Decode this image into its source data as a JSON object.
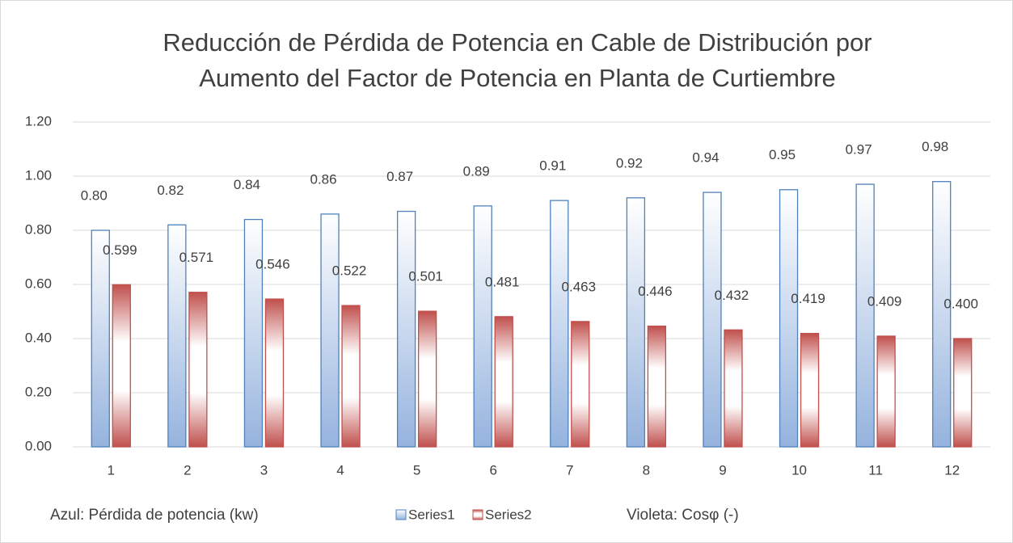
{
  "chart_data": {
    "type": "bar",
    "title": [
      "Reducción de Pérdida de Potencia en Cable de Distribución por",
      "Aumento del Factor de Potencia en Planta de Curtiembre"
    ],
    "categories": [
      "1",
      "2",
      "3",
      "4",
      "5",
      "6",
      "7",
      "8",
      "9",
      "10",
      "11",
      "12"
    ],
    "series": [
      {
        "name": "Series1",
        "color": "#4f81bd",
        "values": [
          0.8,
          0.82,
          0.84,
          0.86,
          0.87,
          0.89,
          0.91,
          0.92,
          0.94,
          0.95,
          0.97,
          0.98
        ],
        "value_labels": [
          "0.80",
          "0.82",
          "0.84",
          "0.86",
          "0.87",
          "0.89",
          "0.91",
          "0.92",
          "0.94",
          "0.95",
          "0.97",
          "0.98"
        ]
      },
      {
        "name": "Series2",
        "color": "#c0504d",
        "values": [
          0.599,
          0.571,
          0.546,
          0.522,
          0.501,
          0.481,
          0.463,
          0.446,
          0.432,
          0.419,
          0.409,
          0.4
        ],
        "value_labels": [
          "0.599",
          "0.571",
          "0.546",
          "0.522",
          "0.501",
          "0.481",
          "0.463",
          "0.446",
          "0.432",
          "0.419",
          "0.409",
          "0.400"
        ]
      }
    ],
    "ylim": [
      0,
      1.2
    ],
    "yticks": [
      {
        "value": 0,
        "label": "0.00"
      },
      {
        "value": 0.2,
        "label": "0.20"
      },
      {
        "value": 0.4,
        "label": "0.40"
      },
      {
        "value": 0.6,
        "label": "0.60"
      },
      {
        "value": 0.8,
        "label": "0.80"
      },
      {
        "value": 1.0,
        "label": "1.00"
      },
      {
        "value": 1.2,
        "label": "1.20"
      }
    ],
    "grid": true,
    "annotations": [
      "Azul: Pérdida de potencia (kw)",
      "Violeta: Cosφ (-)"
    ]
  }
}
